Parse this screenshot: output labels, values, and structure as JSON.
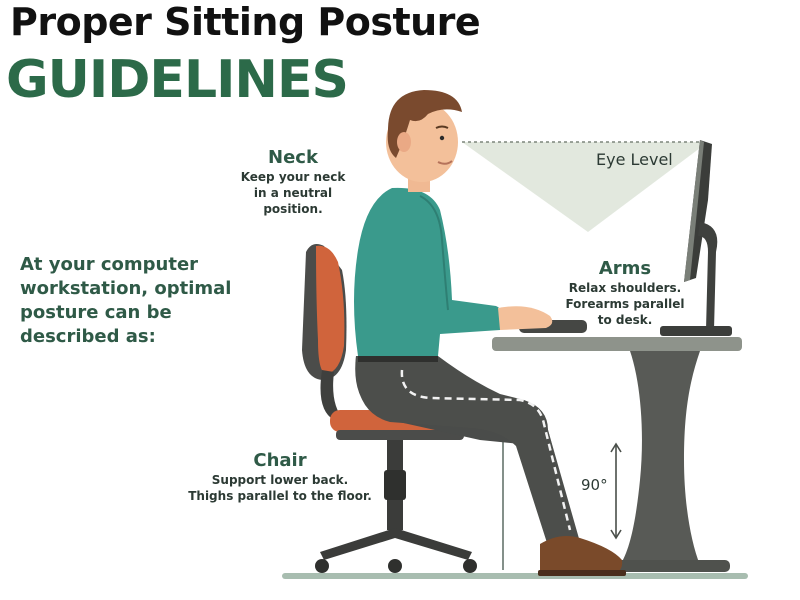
{
  "title": {
    "line1": "Proper Sitting Posture",
    "line2": "GUIDELINES"
  },
  "intro": "At your computer workstation, optimal posture can be described as:",
  "labels": {
    "neck": {
      "heading": "Neck",
      "line1": "Keep your neck",
      "line2": "in a neutral",
      "line3": "position."
    },
    "arms": {
      "heading": "Arms",
      "line1": "Relax shoulders.",
      "line2": "Forearms parallel",
      "line3": "to desk."
    },
    "chair": {
      "heading": "Chair",
      "line1": "Support lower back.",
      "line2": "Thighs parallel to the floor."
    },
    "eye_level": "Eye Level",
    "angle": "90°"
  },
  "colors": {
    "title_green": "#2c6a49",
    "label_green": "#2f5a47",
    "shirt": "#3a9a8c",
    "chair_accent": "#d0643c",
    "desk": "#5a5c58",
    "pants": "#4a4c4a"
  }
}
